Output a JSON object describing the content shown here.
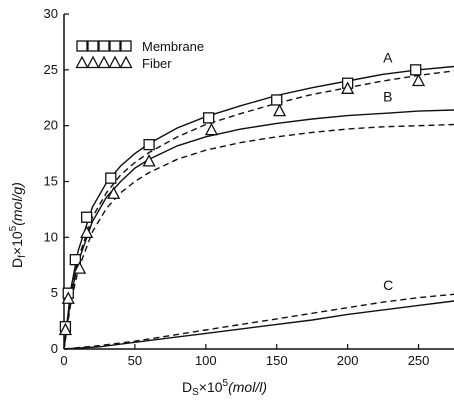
{
  "chart_data": {
    "type": "scatter",
    "xlabel_main": "D",
    "xlabel_sub": "S",
    "xlabel_rest": "×10",
    "xlabel_sup": "5",
    "xlabel_unit": "(mol/l)",
    "ylabel_main": "D",
    "ylabel_sub": "f",
    "ylabel_rest": "×10",
    "ylabel_sup": "5",
    "ylabel_unit": "(mol/g)",
    "xlim": [
      0,
      275
    ],
    "ylim": [
      0,
      30
    ],
    "x_ticks": [
      0,
      50,
      100,
      150,
      200,
      250
    ],
    "y_ticks": [
      0,
      5,
      10,
      15,
      20,
      25,
      30
    ],
    "grid": false,
    "legend_position": "top-left",
    "legend": [
      {
        "label": "Membrane",
        "marker": "square"
      },
      {
        "label": "Fiber",
        "marker": "triangle"
      }
    ],
    "series": [
      {
        "name": "Membrane",
        "marker": "square",
        "x": [
          1,
          3,
          8,
          16,
          33,
          60,
          102,
          150,
          200,
          248
        ],
        "y": [
          2.0,
          5.0,
          8.0,
          11.8,
          15.3,
          18.3,
          20.7,
          22.3,
          23.8,
          25.0
        ]
      },
      {
        "name": "Fiber",
        "marker": "triangle",
        "x": [
          1,
          3,
          11,
          16,
          35,
          60,
          104,
          152,
          200,
          250
        ],
        "y": [
          1.7,
          4.5,
          7.2,
          10.4,
          13.9,
          16.8,
          19.6,
          21.3,
          23.3,
          24.0
        ]
      }
    ],
    "curves": [
      {
        "label": "A",
        "style": "solid",
        "x": [
          0,
          5,
          10,
          20,
          30,
          40,
          50,
          60,
          80,
          100,
          125,
          150,
          175,
          200,
          225,
          250,
          275
        ],
        "y": [
          0,
          5.5,
          8.8,
          12.7,
          14.9,
          16.4,
          17.5,
          18.4,
          19.8,
          20.8,
          21.8,
          22.7,
          23.4,
          24.0,
          24.6,
          25.0,
          25.3
        ]
      },
      {
        "label": "",
        "style": "dashed",
        "x": [
          0,
          5,
          10,
          20,
          30,
          40,
          50,
          60,
          80,
          100,
          125,
          150,
          175,
          200,
          225,
          250,
          275
        ],
        "y": [
          0,
          5.0,
          8.1,
          11.8,
          14.0,
          15.6,
          16.7,
          17.6,
          19.0,
          20.1,
          21.1,
          22.0,
          22.8,
          23.4,
          24.0,
          24.5,
          24.9
        ]
      },
      {
        "label": "B",
        "style": "solid",
        "x": [
          0,
          5,
          10,
          20,
          30,
          40,
          50,
          60,
          80,
          100,
          125,
          150,
          175,
          200,
          225,
          250,
          275
        ],
        "y": [
          0,
          4.8,
          7.8,
          11.4,
          13.6,
          15.0,
          16.2,
          17.0,
          18.2,
          19.0,
          19.7,
          20.2,
          20.6,
          20.9,
          21.1,
          21.3,
          21.4
        ]
      },
      {
        "label": "",
        "style": "dashed",
        "x": [
          0,
          5,
          10,
          20,
          30,
          40,
          50,
          60,
          80,
          100,
          125,
          150,
          175,
          200,
          225,
          250,
          275
        ],
        "y": [
          0,
          4.3,
          7.1,
          10.5,
          12.6,
          14.0,
          15.0,
          15.8,
          17.0,
          17.8,
          18.5,
          19.0,
          19.4,
          19.7,
          19.9,
          20.0,
          20.1
        ]
      },
      {
        "label": "C",
        "style": "dashed",
        "x": [
          0,
          25,
          50,
          75,
          100,
          125,
          150,
          175,
          200,
          225,
          250,
          275
        ],
        "y": [
          0,
          0.3,
          0.7,
          1.2,
          1.7,
          2.2,
          2.7,
          3.2,
          3.7,
          4.2,
          4.6,
          4.9
        ]
      },
      {
        "label": "",
        "style": "solid",
        "x": [
          0,
          25,
          50,
          75,
          100,
          125,
          150,
          175,
          200,
          225,
          250,
          275
        ],
        "y": [
          0,
          0.2,
          0.6,
          1.0,
          1.4,
          1.8,
          2.2,
          2.6,
          3.1,
          3.5,
          3.9,
          4.3
        ]
      }
    ]
  }
}
